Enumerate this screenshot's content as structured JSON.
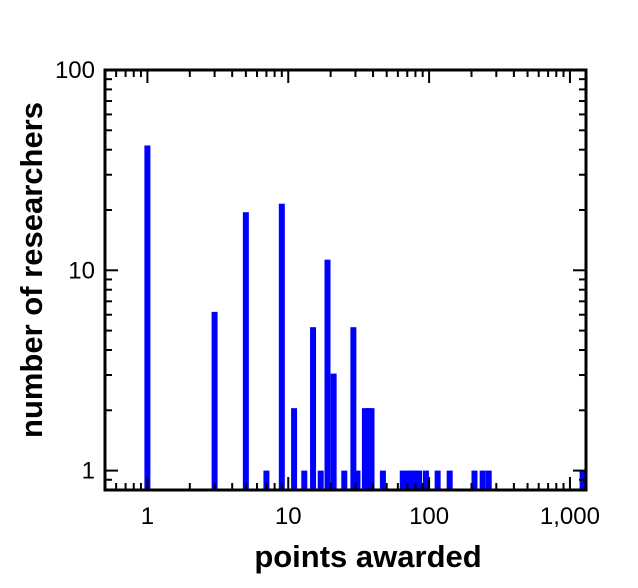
{
  "chart_data": {
    "type": "bar",
    "title": "",
    "xlabel": "points awarded",
    "ylabel": "number of researchers",
    "x_scale": "log",
    "y_scale": "log",
    "xlim": [
      0.5,
      1300
    ],
    "ylim": [
      0.8,
      100
    ],
    "x_ticks": [
      {
        "value": 1,
        "label": "1"
      },
      {
        "value": 10,
        "label": "10"
      },
      {
        "value": 100,
        "label": "100"
      },
      {
        "value": 1000,
        "label": "1,000"
      }
    ],
    "y_ticks": [
      {
        "value": 1,
        "label": "1"
      },
      {
        "value": 10,
        "label": "10"
      },
      {
        "value": 100,
        "label": "100"
      }
    ],
    "grid": false,
    "bar_color": "#0000ff",
    "x": [
      1,
      3,
      5,
      7,
      9,
      11,
      13,
      15,
      17,
      19,
      21,
      25,
      29,
      31,
      35,
      37,
      39,
      47,
      65,
      71,
      75,
      79,
      85,
      95,
      115,
      140,
      210,
      240,
      265,
      1230
    ],
    "values": [
      42,
      6.2,
      19.5,
      1,
      21.5,
      2.05,
      1,
      5.2,
      1,
      11.3,
      3.05,
      1,
      5.2,
      1,
      2.05,
      2.05,
      2.05,
      1,
      1,
      1,
      1,
      1,
      1,
      1,
      1,
      1,
      1,
      1,
      1,
      1
    ]
  }
}
